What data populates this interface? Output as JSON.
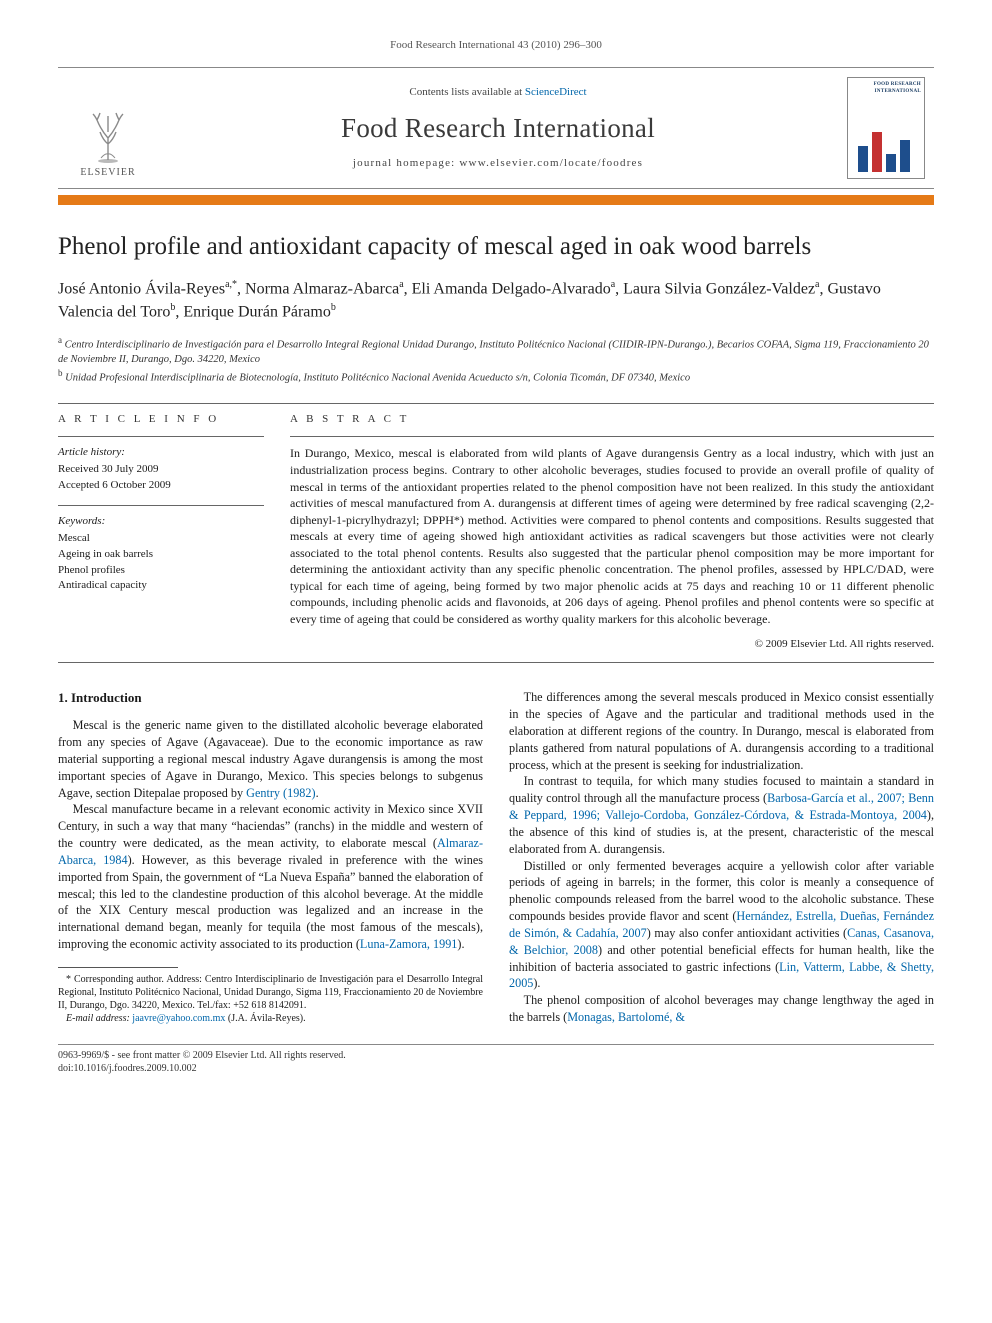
{
  "running_head": "Food Research International 43 (2010) 296–300",
  "banner": {
    "contents_prefix": "Contents lists available at ",
    "contents_link": "ScienceDirect",
    "journal": "Food Research International",
    "homepage_prefix": "journal homepage: ",
    "homepage_url": "www.elsevier.com/locate/foodres",
    "publisher": "ELSEVIER",
    "cover_label": "FOOD RESEARCH INTERNATIONAL"
  },
  "colors": {
    "accent_rule": "#e57a17",
    "link": "#0066aa",
    "text": "#1a1a1a",
    "muted": "#555555"
  },
  "article": {
    "title": "Phenol profile and antioxidant capacity of mescal aged in oak wood barrels",
    "authors_html": "José Antonio Ávila-Reyes<sup>a,*</sup>, Norma Almaraz-Abarca<sup>a</sup>, Eli Amanda Delgado-Alvarado<sup>a</sup>, Laura Silvia González-Valdez<sup>a</sup>, Gustavo Valencia del Toro<sup>b</sup>, Enrique Durán Páramo<sup>b</sup>",
    "affiliations": [
      "Centro Interdisciplinario de Investigación para el Desarrollo Integral Regional Unidad Durango, Instituto Politécnico Nacional (CIIDIR-IPN-Durango.), Becarios COFAA, Sigma 119, Fraccionamiento 20 de Noviembre II, Durango, Dgo. 34220, Mexico",
      "Unidad Profesional Interdisciplinaria de Biotecnología, Instituto Politécnico Nacional Avenida Acueducto s/n, Colonia Ticomán, DF 07340, Mexico"
    ],
    "affil_marks": [
      "a",
      "b"
    ]
  },
  "info": {
    "label": "A R T I C L E   I N F O",
    "history_head": "Article history:",
    "received": "Received 30 July 2009",
    "accepted": "Accepted 6 October 2009",
    "keywords_head": "Keywords:",
    "keywords": [
      "Mescal",
      "Ageing in oak barrels",
      "Phenol profiles",
      "Antiradical capacity"
    ]
  },
  "abstract": {
    "label": "A B S T R A C T",
    "text": "In Durango, Mexico, mescal is elaborated from wild plants of Agave durangensis Gentry as a local industry, which with just an industrialization process begins. Contrary to other alcoholic beverages, studies focused to provide an overall profile of quality of mescal in terms of the antioxidant properties related to the phenol composition have not been realized. In this study the antioxidant activities of mescal manufactured from A. durangensis at different times of ageing were determined by free radical scavenging (2,2-diphenyl-1-picrylhydrazyl; DPPH*) method. Activities were compared to phenol contents and compositions. Results suggested that mescals at every time of ageing showed high antioxidant activities as radical scavengers but those activities were not clearly associated to the total phenol contents. Results also suggested that the particular phenol composition may be more important for determining the antioxidant activity than any specific phenolic concentration. The phenol profiles, assessed by HPLC/DAD, were typical for each time of ageing, being formed by two major phenolic acids at 75 days and reaching 10 or 11 different phenolic compounds, including phenolic acids and flavonoids, at 206 days of ageing. Phenol profiles and phenol contents were so specific at every time of ageing that could be considered as worthy quality markers for this alcoholic beverage.",
    "copyright": "© 2009 Elsevier Ltd. All rights reserved."
  },
  "body": {
    "section_heading": "1. Introduction",
    "p1a": "Mescal is the generic name given to the distillated alcoholic beverage elaborated from any species of Agave (Agavaceae). Due to the economic importance as raw material supporting a regional mescal industry Agave durangensis is among the most important species of Agave in Durango, Mexico. This species belongs to subgenus Agave, section Ditepalae proposed by ",
    "p1_ref": "Gentry (1982)",
    "p1b": ".",
    "p2a": "Mescal manufacture became in a relevant economic activity in Mexico since XVII Century, in such a way that many “haciendas” (ranchs) in the middle and western of the country were dedicated, as the mean activity, to elaborate mescal (",
    "p2_ref": "Almaraz-Abarca, 1984",
    "p2b": "). However, as this beverage rivaled in preference with the wines imported from Spain, the government of “La Nueva España” banned the elaboration of mescal; this led to the clandestine production of this alcohol beverage. At the middle of the XIX Century mescal production was legalized and an increase in the international demand began, meanly for tequila (the most famous of the mescals), ",
    "p3a": "improving the economic activity associated to its production (",
    "p3_ref": "Luna-Zamora, 1991",
    "p3b": ").",
    "p4": "The differences among the several mescals produced in Mexico consist essentially in the species of Agave and the particular and traditional methods used in the elaboration at different regions of the country. In Durango, mescal is elaborated from plants gathered from natural populations of A. durangensis according to a traditional process, which at the present is seeking for industrialization.",
    "p5a": "In contrast to tequila, for which many studies focused to maintain a standard in quality control through all the manufacture process (",
    "p5_ref": "Barbosa-García et al., 2007; Benn & Peppard, 1996; Vallejo-Cordoba, González-Córdova, & Estrada-Montoya, 2004",
    "p5b": "), the absence of this kind of studies is, at the present, characteristic of the mescal elaborated from A. durangensis.",
    "p6a": "Distilled or only fermented beverages acquire a yellowish color after variable periods of ageing in barrels; in the former, this color is meanly a consequence of phenolic compounds released from the barrel wood to the alcoholic substance. These compounds besides provide flavor and scent (",
    "p6_ref1": "Hernández, Estrella, Dueñas, Fernández de Simón, & Cadahía, 2007",
    "p6b": ") may also confer antioxidant activities (",
    "p6_ref2": "Canas, Casanova, & Belchior, 2008",
    "p6c": ") and other potential beneficial effects for human health, like the inhibition of bacteria associated to gastric infections (",
    "p6_ref3": "Lin, Vatterm, Labbe, & Shetty, 2005",
    "p6d": ").",
    "p7a": "The phenol composition of alcohol beverages may change lengthway the aged in the barrels (",
    "p7_ref": "Monagas, Bartolomé, &"
  },
  "footnotes": {
    "corr_label": "* Corresponding author. Address: Centro Interdisciplinario de Investigación para el Desarrollo Integral Regional, Instituto Politécnico Nacional, Unidad Durango, Sigma 119, Fraccionamiento 20 de Noviembre II, Durango, Dgo. 34220, Mexico. Tel./fax: +52 618 8142091.",
    "email_label": "E-mail address:",
    "email": "jaavre@yahoo.com.mx",
    "email_who": "(J.A. Ávila-Reyes)."
  },
  "footer": {
    "left1": "0963-9969/$ - see front matter © 2009 Elsevier Ltd. All rights reserved.",
    "left2": "doi:10.1016/j.foodres.2009.10.002"
  }
}
